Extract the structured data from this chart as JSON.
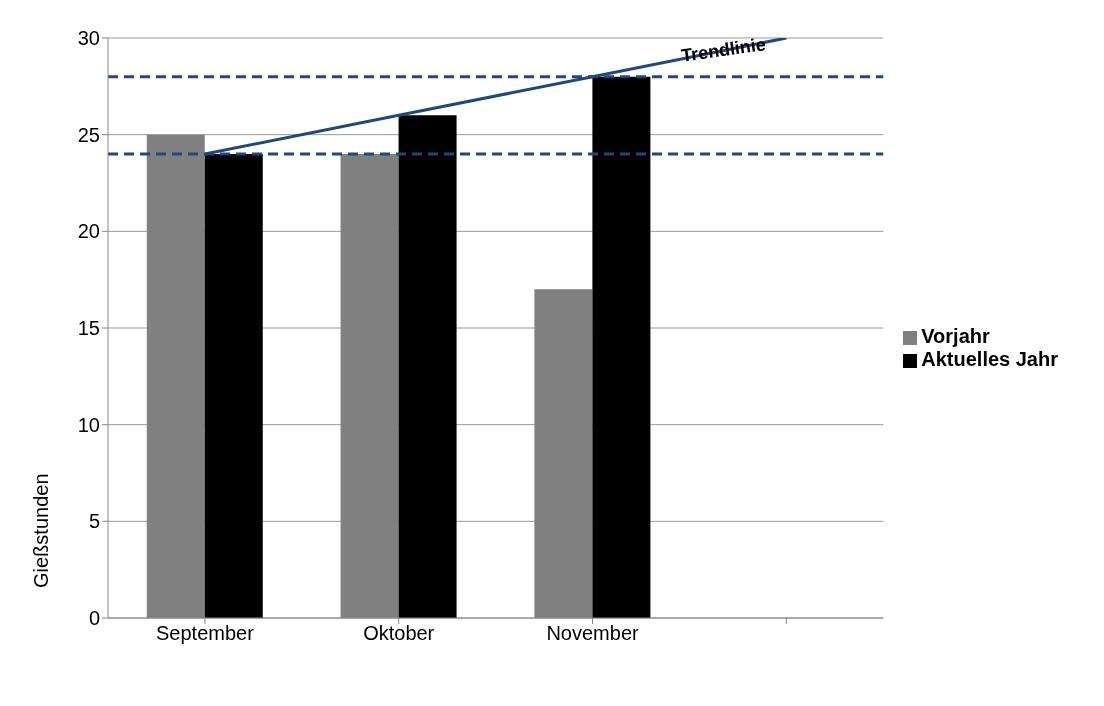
{
  "chart_data": {
    "type": "bar",
    "ylabel": "Gießstunden",
    "categories": [
      "September",
      "Oktober",
      "November",
      null
    ],
    "series": [
      {
        "name": "Vorjahr",
        "color": "#808080",
        "values": [
          25,
          24,
          17,
          null
        ]
      },
      {
        "name": "Aktuelles Jahr",
        "color": "#000000",
        "values": [
          24,
          26,
          28,
          null
        ]
      },
      {
        "name": "Trendlinie",
        "type": "line",
        "color": "#1f497d",
        "values": [
          24,
          26,
          28,
          30
        ]
      }
    ],
    "ylim": [
      0,
      30
    ],
    "yticks": [
      0,
      5,
      10,
      15,
      20,
      25,
      30
    ],
    "grid": "y",
    "legend": "right",
    "ref_lines": [
      {
        "axis": "y",
        "value": 28,
        "color": "#1f497d",
        "line_style": "dashed"
      },
      {
        "axis": "y",
        "value": 24,
        "color": "#1f497d",
        "line_style": "dashed"
      }
    ]
  }
}
